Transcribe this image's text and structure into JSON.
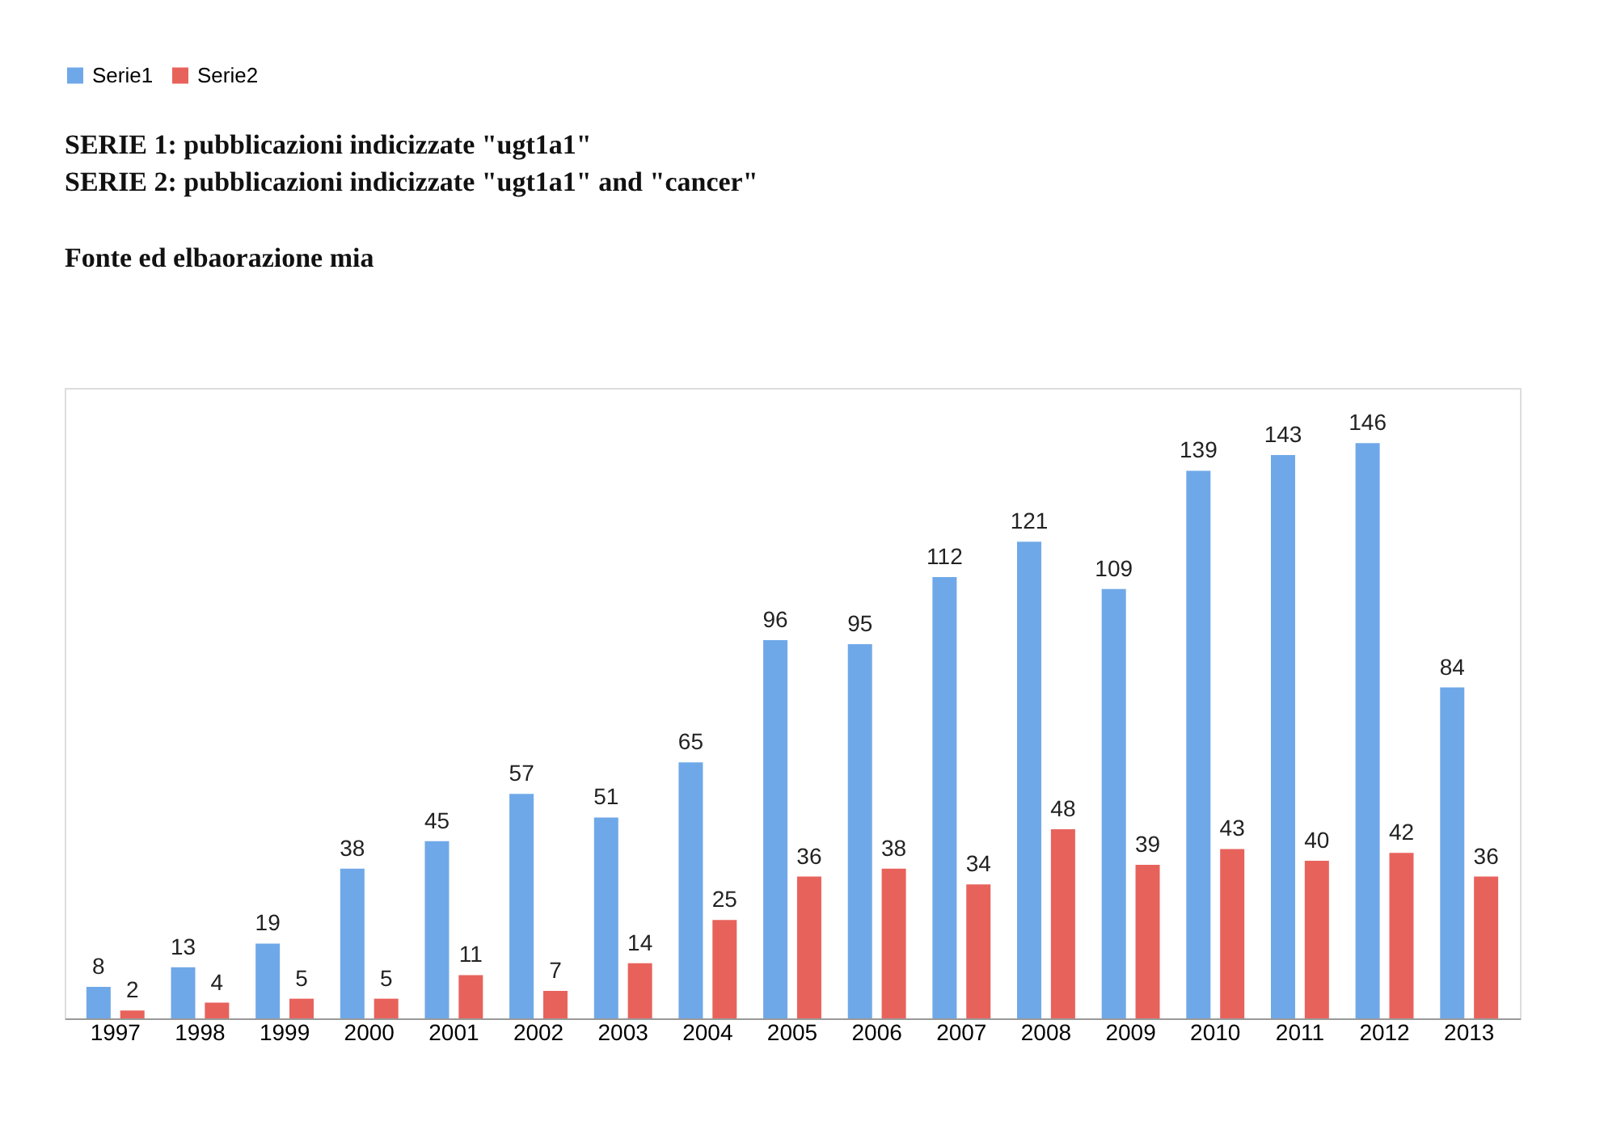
{
  "chart_data": {
    "type": "bar",
    "title": "SERIE 1: pubblicazioni indicizzate \"ugt1a1\"",
    "subtitle": "SERIE 2: pubblicazioni indicizzate \"ugt1a1\" and \"cancer\"",
    "annotations": [
      "Fonte ed elbaorazione mia"
    ],
    "categories": [
      "1997",
      "1998",
      "1999",
      "2000",
      "2001",
      "2002",
      "2003",
      "2004",
      "2005",
      "2006",
      "2007",
      "2008",
      "2009",
      "2010",
      "2011",
      "2012",
      "2013"
    ],
    "series": [
      {
        "name": "Serie1",
        "color": "#6fa8e8",
        "values": [
          8,
          13,
          19,
          38,
          45,
          57,
          51,
          65,
          96,
          95,
          112,
          121,
          109,
          139,
          143,
          146,
          84
        ]
      },
      {
        "name": "Serie2",
        "color": "#e8625c",
        "values": [
          2,
          4,
          5,
          5,
          11,
          7,
          14,
          25,
          36,
          38,
          34,
          48,
          39,
          43,
          40,
          42,
          36
        ]
      }
    ],
    "data_labels": true,
    "legend": "top left",
    "grid": false
  }
}
